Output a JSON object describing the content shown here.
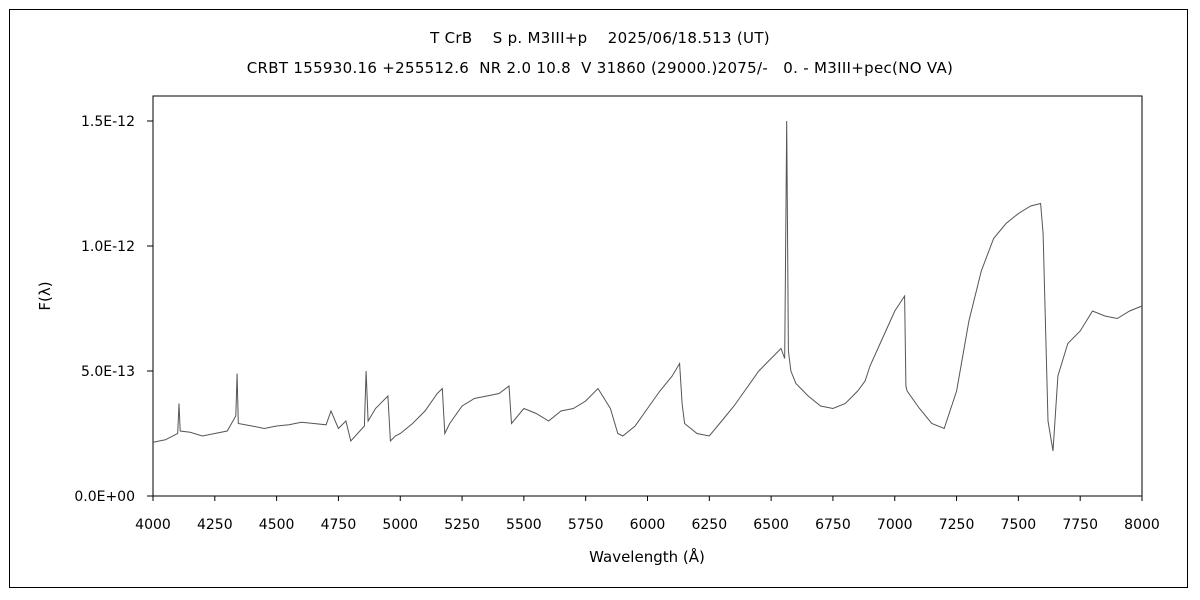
{
  "chart_data": {
    "type": "line",
    "title": "T CrB    S p. M3III+p    2025/06/18.513 (UT)",
    "subtitle": "CRBT 155930.16 +255512.6  NR 2.0 10.8  V 31860 (29000.)2075/-   0. - M3III+pec(NO VA)",
    "xlabel": "Wavelength (Å)",
    "ylabel": "F(λ)",
    "xlim": [
      4000,
      8000
    ],
    "ylim": [
      0,
      1.6e-12
    ],
    "x_ticks": [
      4000,
      4250,
      4500,
      4750,
      5000,
      5250,
      5500,
      5750,
      6000,
      6250,
      6500,
      6750,
      7000,
      7250,
      7500,
      7750,
      8000
    ],
    "x_tick_labels": [
      "4000",
      "4250",
      "4500",
      "4750",
      "5000",
      "5250",
      "5500",
      "5750",
      "6000",
      "6250",
      "6500",
      "6750",
      "7000",
      "7250",
      "7500",
      "7750",
      "8000"
    ],
    "y_ticks": [
      0,
      5e-13,
      1e-12,
      1.5e-12
    ],
    "y_tick_labels": [
      "0.0E+00",
      "5.0E-13",
      "1.0E-12",
      "1.5E-12"
    ],
    "grid": false,
    "line_color": "#555555",
    "series": [
      {
        "x": [
          4000,
          4050,
          4100,
          4105,
          4110,
          4150,
          4200,
          4250,
          4300,
          4335,
          4340,
          4345,
          4400,
          4450,
          4500,
          4550,
          4600,
          4650,
          4700,
          4720,
          4750,
          4780,
          4800,
          4855,
          4862,
          4870,
          4900,
          4950,
          4960,
          4980,
          5000,
          5050,
          5100,
          5150,
          5170,
          5180,
          5200,
          5250,
          5300,
          5350,
          5400,
          5440,
          5450,
          5500,
          5550,
          5600,
          5650,
          5700,
          5750,
          5800,
          5850,
          5880,
          5900,
          5950,
          6000,
          6050,
          6100,
          6130,
          6140,
          6150,
          6200,
          6250,
          6300,
          6350,
          6400,
          6450,
          6500,
          6540,
          6555,
          6563,
          6570,
          6580,
          6600,
          6650,
          6700,
          6750,
          6800,
          6850,
          6880,
          6900,
          6950,
          7000,
          7040,
          7045,
          7050,
          7100,
          7150,
          7200,
          7250,
          7300,
          7350,
          7400,
          7450,
          7500,
          7550,
          7590,
          7600,
          7620,
          7640,
          7660,
          7700,
          7750,
          7800,
          7850,
          7900,
          7950,
          8000
        ],
        "y": [
          2.15e-13,
          2.25e-13,
          2.5e-13,
          3.7e-13,
          2.6e-13,
          2.55e-13,
          2.4e-13,
          2.5e-13,
          2.6e-13,
          3.2e-13,
          4.9e-13,
          2.9e-13,
          2.8e-13,
          2.7e-13,
          2.8e-13,
          2.85e-13,
          2.95e-13,
          2.9e-13,
          2.85e-13,
          3.4e-13,
          2.7e-13,
          3e-13,
          2.2e-13,
          2.8e-13,
          5e-13,
          3e-13,
          3.5e-13,
          4e-13,
          2.2e-13,
          2.4e-13,
          2.5e-13,
          2.9e-13,
          3.4e-13,
          4.1e-13,
          4.3e-13,
          2.5e-13,
          2.9e-13,
          3.6e-13,
          3.9e-13,
          4e-13,
          4.1e-13,
          4.4e-13,
          2.9e-13,
          3.5e-13,
          3.3e-13,
          3e-13,
          3.4e-13,
          3.5e-13,
          3.8e-13,
          4.3e-13,
          3.5e-13,
          2.5e-13,
          2.4e-13,
          2.8e-13,
          3.5e-13,
          4.2e-13,
          4.8e-13,
          5.3e-13,
          3.7e-13,
          2.9e-13,
          2.5e-13,
          2.4e-13,
          3e-13,
          3.6e-13,
          4.3e-13,
          5e-13,
          5.5e-13,
          5.9e-13,
          5.5e-13,
          1.5e-12,
          5.8e-13,
          5e-13,
          4.5e-13,
          4e-13,
          3.6e-13,
          3.5e-13,
          3.7e-13,
          4.2e-13,
          4.6e-13,
          5.2e-13,
          6.3e-13,
          7.4e-13,
          8e-13,
          4.4e-13,
          4.2e-13,
          3.5e-13,
          2.9e-13,
          2.7e-13,
          4.2e-13,
          7e-13,
          9e-13,
          1.03e-12,
          1.09e-12,
          1.13e-12,
          1.16e-12,
          1.17e-12,
          1.05e-12,
          3e-13,
          1.8e-13,
          4.8e-13,
          6.1e-13,
          6.6e-13,
          7.4e-13,
          7.2e-13,
          7.1e-13,
          7.4e-13,
          7.6e-13
        ]
      }
    ]
  }
}
